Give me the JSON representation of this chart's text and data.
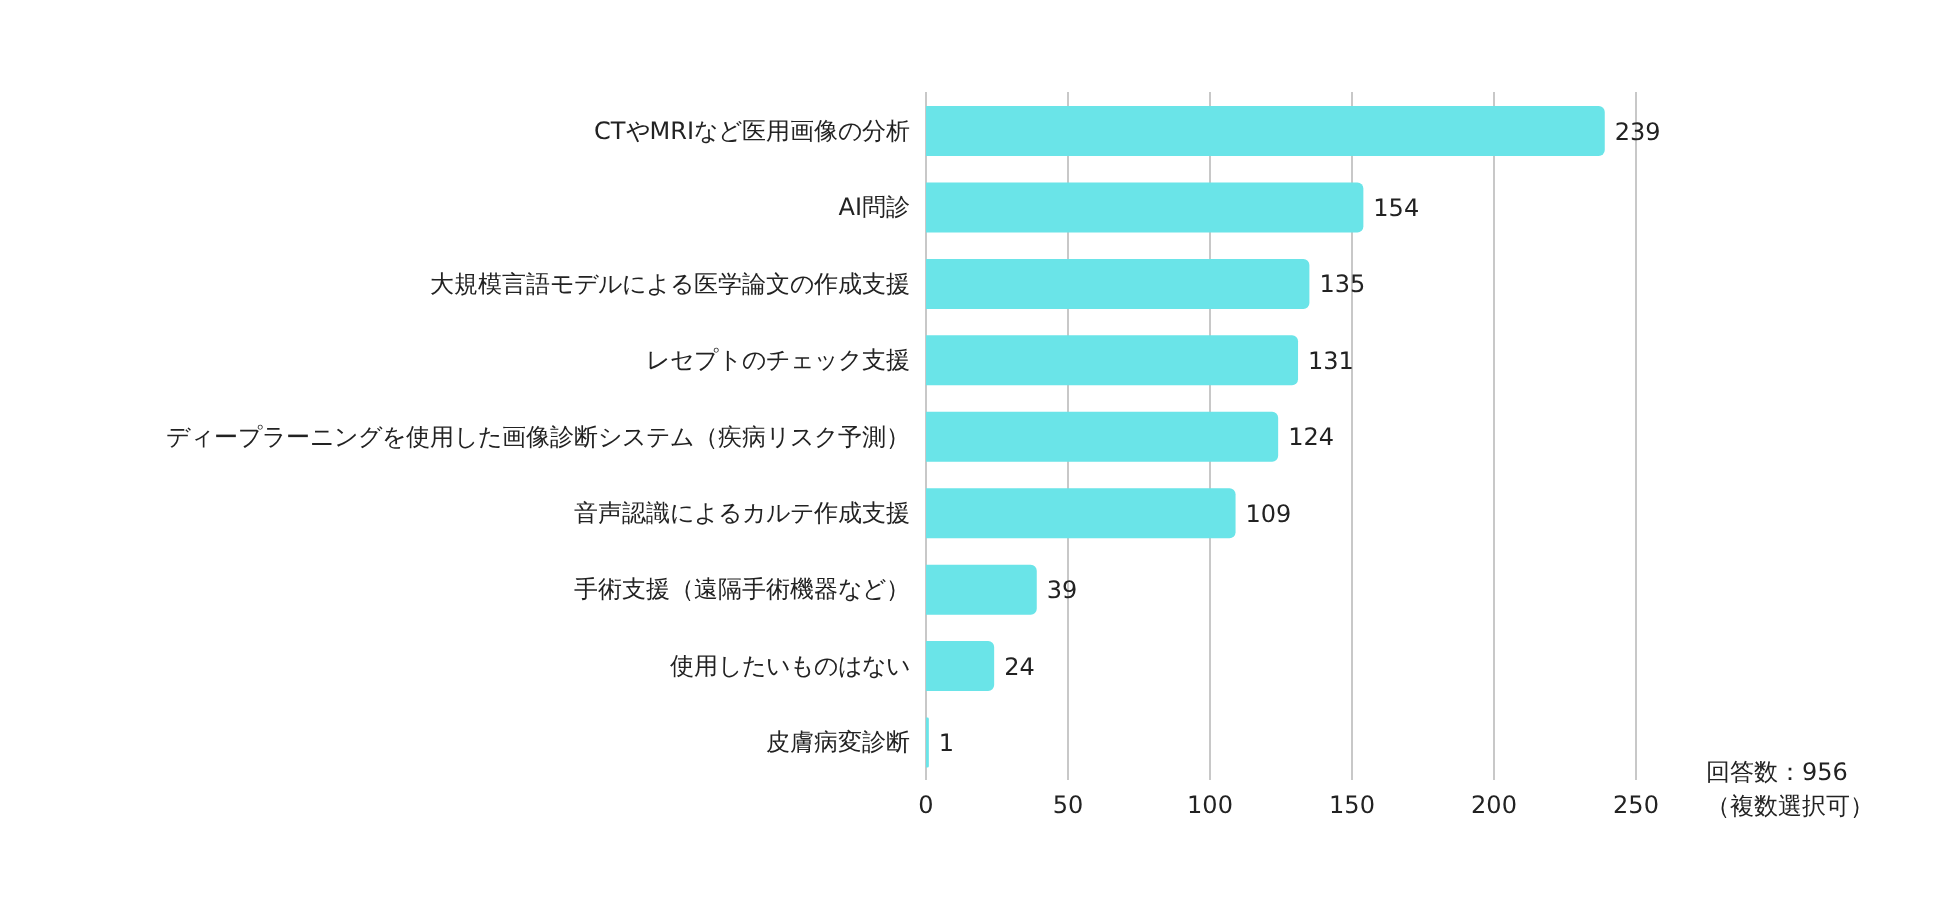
{
  "chart_data": {
    "type": "bar",
    "orientation": "horizontal",
    "categories": [
      "CTやMRIなど医用画像の分析",
      "AI問診",
      "大規模言語モデルによる医学論文の作成支援",
      "レセプトのチェック支援",
      "ディープラーニングを使用した画像診断システム（疾病リスク予測）",
      "音声認識によるカルテ作成支援",
      "手術支援（遠隔手術機器など）",
      "使用したいものはない",
      "皮膚病変診断"
    ],
    "values": [
      239,
      154,
      135,
      131,
      124,
      109,
      39,
      24,
      1
    ],
    "color": "#6ae4e8",
    "data_labels": true,
    "xlim": [
      0,
      250
    ],
    "xticks": [
      0,
      50,
      100,
      150,
      200,
      250
    ],
    "grid": "x",
    "annotations": [
      "回答数：956",
      "（複数選択可）"
    ]
  }
}
